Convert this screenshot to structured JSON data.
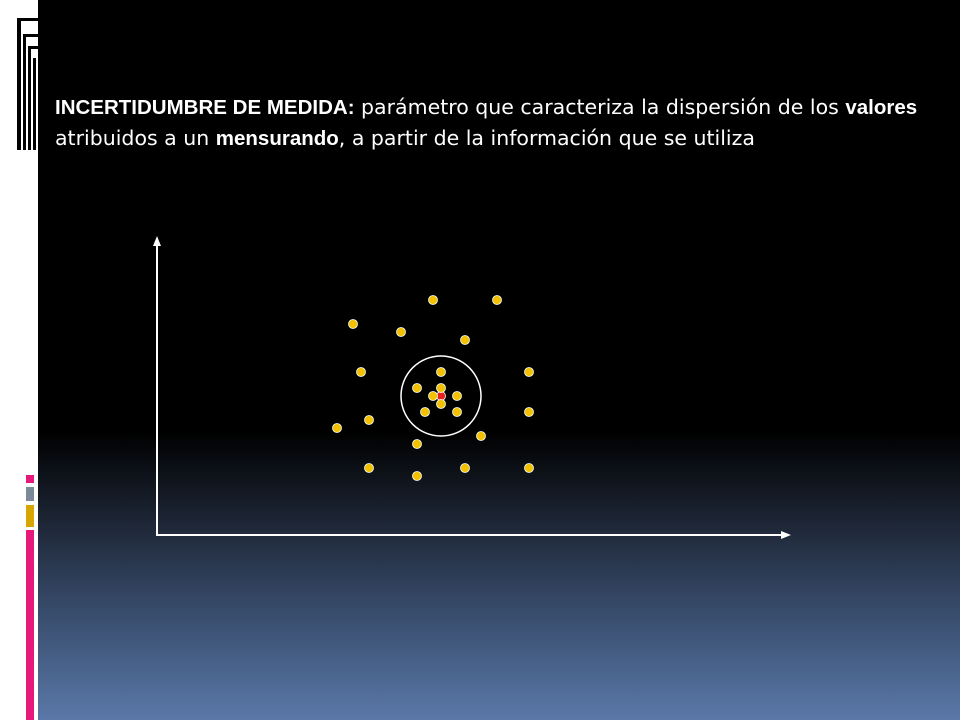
{
  "slide": {
    "term": "INCERTIDUMBRE DE MEDIDA:",
    "text_1": " parámetro que caracteriza la dispersión de los ",
    "bold_1": "valores",
    "text_2": " atribuidos a un ",
    "bold_2": "mensurando",
    "text_3": ", a partir de la información que se utiliza"
  },
  "colors": {
    "point_fill": "#f2c200",
    "point_stroke": "#ffffff",
    "center_point": "#e8201e",
    "axis": "#ffffff",
    "accent_pink": "#e6197a",
    "accent_gold": "#d7a600",
    "accent_gray": "#7a8a99"
  },
  "diagram": {
    "points": [
      {
        "x": 0.0,
        "y": 0.0,
        "kind": "center"
      },
      {
        "x": 0.0,
        "y": 1.0
      },
      {
        "x": 0.0,
        "y": -1.0
      },
      {
        "x": -1.0,
        "y": 0.0
      },
      {
        "x": 2.0,
        "y": 0.0
      },
      {
        "x": -3.0,
        "y": 1.0
      },
      {
        "x": -2.0,
        "y": -2.0
      },
      {
        "x": 2.0,
        "y": -2.0
      },
      {
        "x": 0.0,
        "y": 3.0
      },
      {
        "x": -1.0,
        "y": 12.0
      },
      {
        "x": 7.0,
        "y": 12.0
      },
      {
        "x": -11.0,
        "y": 9.0
      },
      {
        "x": -5.0,
        "y": 8.0
      },
      {
        "x": 3.0,
        "y": 7.0
      },
      {
        "x": -10.0,
        "y": 3.0
      },
      {
        "x": 11.0,
        "y": 3.0
      },
      {
        "x": -13.0,
        "y": -4.0
      },
      {
        "x": -9.0,
        "y": -3.0
      },
      {
        "x": 11.0,
        "y": -2.0
      },
      {
        "x": 5.0,
        "y": -5.0
      },
      {
        "x": -3.0,
        "y": -6.0
      },
      {
        "x": -9.0,
        "y": -9.0
      },
      {
        "x": 3.0,
        "y": -9.0
      },
      {
        "x": 11.0,
        "y": -9.0
      },
      {
        "x": -3.0,
        "y": -10.0
      }
    ],
    "circle_radius": 5.0
  }
}
